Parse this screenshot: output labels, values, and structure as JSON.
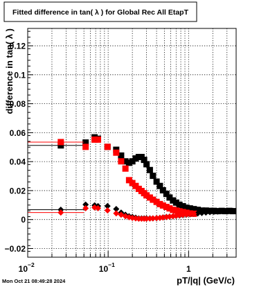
{
  "title": "Fitted difference in tan( λ ) for Global Rec All EtapT",
  "footer_timestamp": "Mon Oct 21 08:49:28 2024",
  "chart_data": {
    "type": "scatter",
    "x_scale": "log",
    "xlim": [
      0.01,
      3.9
    ],
    "ylim": [
      -0.026,
      0.132
    ],
    "xlabel": "pT/|q| (GeV/c)",
    "ylabel": "difference in tan( λ )",
    "grid": true,
    "x_tick_labels": [
      {
        "value": 0.01,
        "base": "10",
        "exp": "−2"
      },
      {
        "value": 0.1,
        "base": "10",
        "exp": "−1"
      },
      {
        "value": 1,
        "base": "1",
        "exp": ""
      }
    ],
    "y_ticks": [
      -0.02,
      0,
      0.02,
      0.04,
      0.06,
      0.08,
      0.1,
      0.12
    ],
    "y_tick_labels": [
      "−0.02",
      "0",
      "0.02",
      "0.04",
      "0.06",
      "0.08",
      "0.1",
      "0.12"
    ],
    "series": [
      {
        "color": "#000000",
        "marker": "square",
        "points": [
          {
            "x": 0.0258,
            "y": 0.0512,
            "xerr_lo": 0.0158,
            "xerr_hi": 0.0242
          },
          {
            "x": 0.0525,
            "y": 0.0532
          },
          {
            "x": 0.0678,
            "y": 0.0568
          },
          {
            "x": 0.0748,
            "y": 0.0558
          },
          {
            "x": 0.0982,
            "y": 0.0502
          },
          {
            "x": 0.126,
            "y": 0.0482
          },
          {
            "x": 0.145,
            "y": 0.0442
          },
          {
            "x": 0.164,
            "y": 0.0402
          },
          {
            "x": 0.182,
            "y": 0.0392
          },
          {
            "x": 0.2,
            "y": 0.0402
          },
          {
            "x": 0.22,
            "y": 0.0422
          },
          {
            "x": 0.24,
            "y": 0.0432
          },
          {
            "x": 0.26,
            "y": 0.0432
          },
          {
            "x": 0.28,
            "y": 0.0412
          },
          {
            "x": 0.3,
            "y": 0.0382
          },
          {
            "x": 0.33,
            "y": 0.0342
          },
          {
            "x": 0.36,
            "y": 0.0302
          },
          {
            "x": 0.4,
            "y": 0.0262
          },
          {
            "x": 0.44,
            "y": 0.0232
          },
          {
            "x": 0.48,
            "y": 0.0202
          },
          {
            "x": 0.53,
            "y": 0.0177
          },
          {
            "x": 0.58,
            "y": 0.0152
          },
          {
            "x": 0.64,
            "y": 0.0132
          },
          {
            "x": 0.7,
            "y": 0.0117
          },
          {
            "x": 0.77,
            "y": 0.0102
          },
          {
            "x": 0.85,
            "y": 0.0092
          },
          {
            "x": 0.94,
            "y": 0.0082
          },
          {
            "x": 1.04,
            "y": 0.0077
          },
          {
            "x": 1.16,
            "y": 0.0072
          },
          {
            "x": 1.3,
            "y": 0.0067
          },
          {
            "x": 1.46,
            "y": 0.0062
          },
          {
            "x": 1.64,
            "y": 0.0062
          },
          {
            "x": 1.84,
            "y": 0.006
          },
          {
            "x": 2.06,
            "y": 0.006
          },
          {
            "x": 2.3,
            "y": 0.0058
          },
          {
            "x": 2.58,
            "y": 0.006
          },
          {
            "x": 2.88,
            "y": 0.0058
          },
          {
            "x": 3.2,
            "y": 0.006
          },
          {
            "x": 3.55,
            "y": 0.0058
          }
        ]
      },
      {
        "color": "#ff0000",
        "marker": "square",
        "points": [
          {
            "x": 0.0258,
            "y": 0.0535,
            "xerr_lo": 0.0158,
            "xerr_hi": 0.0242
          },
          {
            "x": 0.0525,
            "y": 0.0502
          },
          {
            "x": 0.0678,
            "y": 0.0552
          },
          {
            "x": 0.0748,
            "y": 0.0552
          },
          {
            "x": 0.0982,
            "y": 0.0502
          },
          {
            "x": 0.126,
            "y": 0.0462
          },
          {
            "x": 0.145,
            "y": 0.0402
          },
          {
            "x": 0.164,
            "y": 0.0352
          },
          {
            "x": 0.182,
            "y": 0.0272
          },
          {
            "x": 0.2,
            "y": 0.0252
          },
          {
            "x": 0.22,
            "y": 0.0232
          },
          {
            "x": 0.24,
            "y": 0.0212
          },
          {
            "x": 0.26,
            "y": 0.0197
          },
          {
            "x": 0.28,
            "y": 0.0182
          },
          {
            "x": 0.3,
            "y": 0.0167
          },
          {
            "x": 0.33,
            "y": 0.0152
          },
          {
            "x": 0.36,
            "y": 0.0137
          },
          {
            "x": 0.4,
            "y": 0.0122
          },
          {
            "x": 0.44,
            "y": 0.0107
          },
          {
            "x": 0.48,
            "y": 0.0097
          },
          {
            "x": 0.53,
            "y": 0.0087
          },
          {
            "x": 0.58,
            "y": 0.0077
          },
          {
            "x": 0.64,
            "y": 0.0067
          },
          {
            "x": 0.7,
            "y": 0.0062
          },
          {
            "x": 0.77,
            "y": 0.0057
          },
          {
            "x": 0.85,
            "y": 0.0052
          },
          {
            "x": 0.94,
            "y": 0.0047
          },
          {
            "x": 1.04,
            "y": 0.0042
          },
          {
            "x": 1.16,
            "y": 0.004
          }
        ]
      },
      {
        "color": "#000000",
        "marker": "diamond",
        "points": [
          {
            "x": 0.0258,
            "y": 0.0068,
            "xerr_lo": 0.0158,
            "xerr_hi": 0.0242
          },
          {
            "x": 0.0525,
            "y": 0.0103
          },
          {
            "x": 0.0678,
            "y": 0.0098
          },
          {
            "x": 0.0748,
            "y": 0.0093
          },
          {
            "x": 0.0982,
            "y": 0.0093
          },
          {
            "x": 0.126,
            "y": 0.0073
          },
          {
            "x": 0.145,
            "y": 0.0048
          },
          {
            "x": 0.164,
            "y": 0.0033
          },
          {
            "x": 0.182,
            "y": 0.0023
          },
          {
            "x": 0.2,
            "y": 0.0018
          },
          {
            "x": 0.22,
            "y": 0.0013
          },
          {
            "x": 0.24,
            "y": 0.0008
          },
          {
            "x": 0.26,
            "y": 0.0008
          },
          {
            "x": 0.28,
            "y": 0.0008
          },
          {
            "x": 0.3,
            "y": 0.0008
          },
          {
            "x": 0.33,
            "y": 0.0008
          },
          {
            "x": 0.36,
            "y": 0.0008
          },
          {
            "x": 0.4,
            "y": 0.001
          },
          {
            "x": 0.44,
            "y": 0.0012
          },
          {
            "x": 0.48,
            "y": 0.0015
          },
          {
            "x": 0.53,
            "y": 0.0018
          },
          {
            "x": 0.58,
            "y": 0.002
          },
          {
            "x": 0.64,
            "y": 0.0023
          },
          {
            "x": 0.7,
            "y": 0.0025
          },
          {
            "x": 0.77,
            "y": 0.0028
          },
          {
            "x": 0.85,
            "y": 0.003
          },
          {
            "x": 0.94,
            "y": 0.0033
          },
          {
            "x": 1.04,
            "y": 0.0036
          },
          {
            "x": 1.16,
            "y": 0.0039
          },
          {
            "x": 1.3,
            "y": 0.0042
          },
          {
            "x": 1.46,
            "y": 0.0045
          },
          {
            "x": 1.64,
            "y": 0.0048
          },
          {
            "x": 1.84,
            "y": 0.0051
          },
          {
            "x": 2.06,
            "y": 0.0053
          },
          {
            "x": 2.3,
            "y": 0.0055
          },
          {
            "x": 2.58,
            "y": 0.0057
          },
          {
            "x": 2.88,
            "y": 0.0058
          },
          {
            "x": 3.2,
            "y": 0.0059
          },
          {
            "x": 3.55,
            "y": 0.006
          }
        ]
      },
      {
        "color": "#ff0000",
        "marker": "diamond",
        "points": [
          {
            "x": 0.0258,
            "y": 0.0048,
            "xerr_lo": 0.0158,
            "xerr_hi": 0.0242
          },
          {
            "x": 0.0525,
            "y": 0.0078
          },
          {
            "x": 0.0678,
            "y": 0.0083
          },
          {
            "x": 0.0748,
            "y": 0.0078
          },
          {
            "x": 0.0982,
            "y": 0.0063
          },
          {
            "x": 0.126,
            "y": 0.0043
          },
          {
            "x": 0.145,
            "y": 0.0033
          },
          {
            "x": 0.164,
            "y": 0.0023
          },
          {
            "x": 0.182,
            "y": 0.0016
          },
          {
            "x": 0.2,
            "y": 0.0011
          },
          {
            "x": 0.22,
            "y": 0.0008
          },
          {
            "x": 0.24,
            "y": 0.0006
          },
          {
            "x": 0.26,
            "y": 0.0006
          },
          {
            "x": 0.28,
            "y": 0.0006
          },
          {
            "x": 0.3,
            "y": 0.0006
          },
          {
            "x": 0.33,
            "y": 0.0007
          },
          {
            "x": 0.36,
            "y": 0.0008
          },
          {
            "x": 0.4,
            "y": 0.001
          },
          {
            "x": 0.44,
            "y": 0.0012
          },
          {
            "x": 0.48,
            "y": 0.0014
          },
          {
            "x": 0.53,
            "y": 0.0017
          },
          {
            "x": 0.58,
            "y": 0.002
          },
          {
            "x": 0.64,
            "y": 0.0023
          },
          {
            "x": 0.7,
            "y": 0.0026
          },
          {
            "x": 0.77,
            "y": 0.0029
          },
          {
            "x": 0.85,
            "y": 0.0032
          },
          {
            "x": 0.94,
            "y": 0.0035
          },
          {
            "x": 1.04,
            "y": 0.0038
          },
          {
            "x": 1.16,
            "y": 0.004
          }
        ]
      }
    ]
  }
}
